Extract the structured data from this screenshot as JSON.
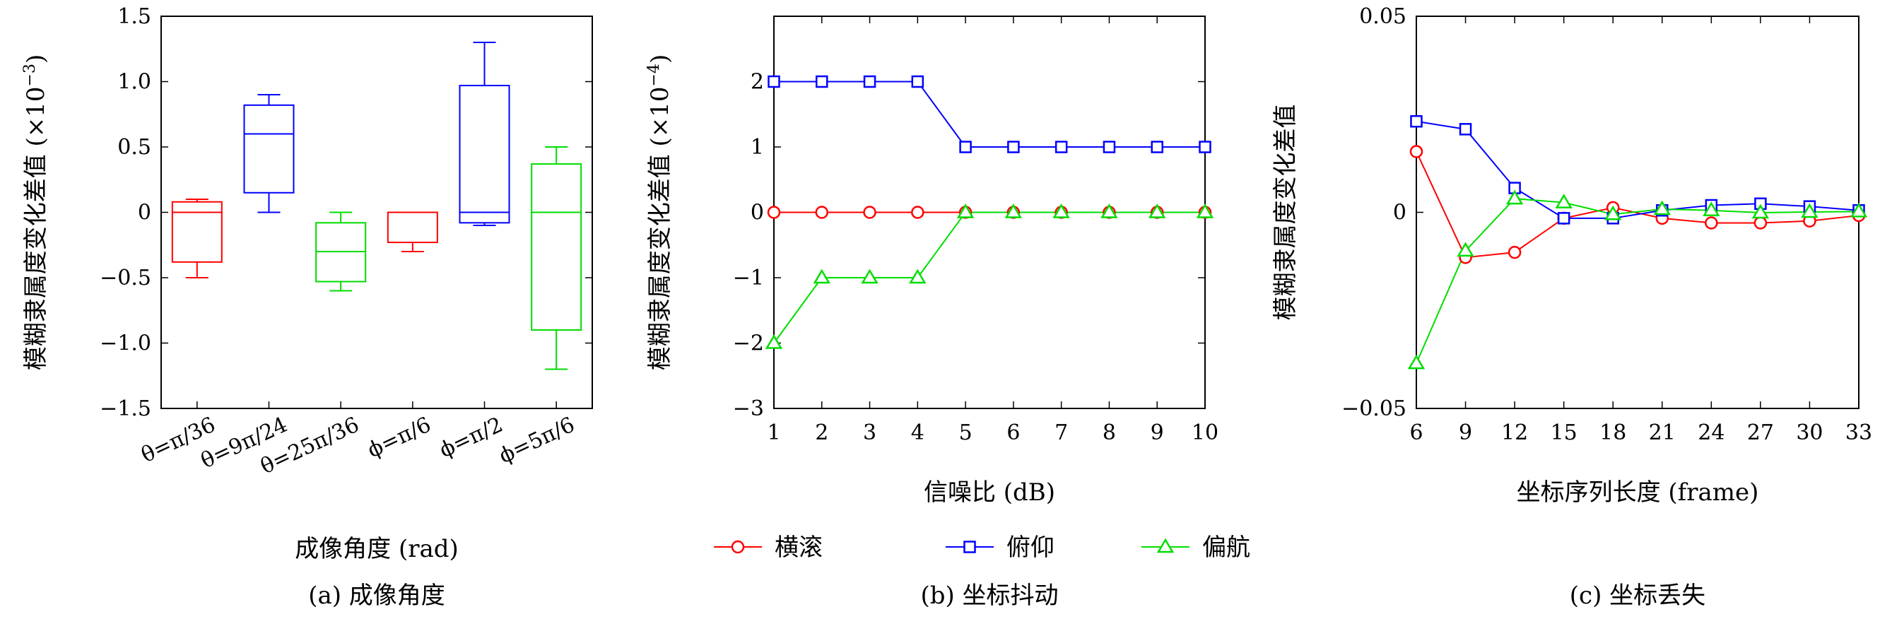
{
  "chart_data": [
    {
      "type": "box",
      "panel_caption": "(a) 成像角度",
      "xlabel": "成像角度 (rad)",
      "ylabel": "模糊隶属度变化差值",
      "ylabel_unit": "(×10",
      "ylabel_exp": "−3",
      "ylabel_close": ")",
      "ylim": [
        -1.5,
        1.5
      ],
      "yticks": [
        -1.5,
        -1.0,
        -0.5,
        0,
        0.5,
        1.0,
        1.5
      ],
      "ytick_labels": [
        "−1.5",
        "−1.0",
        "−0.5",
        "0",
        "0.5",
        "1.0",
        "1.5"
      ],
      "categories": [
        "θ=π/36",
        "θ=9π/24",
        "θ=25π/36",
        "ϕ=π/6",
        "ϕ=π/2",
        "ϕ=5π/6"
      ],
      "boxes": [
        {
          "label": "θ=π/36",
          "color": "#ff0000",
          "min": -0.5,
          "q1": -0.38,
          "median": 0.0,
          "q3": 0.08,
          "max": 0.1
        },
        {
          "label": "θ=9π/24",
          "color": "#0000ff",
          "min": 0.0,
          "q1": 0.15,
          "median": 0.6,
          "q3": 0.82,
          "max": 0.9
        },
        {
          "label": "θ=25π/36",
          "color": "#00dd00",
          "min": -0.6,
          "q1": -0.53,
          "median": -0.3,
          "q3": -0.08,
          "max": 0.0
        },
        {
          "label": "ϕ=π/6",
          "color": "#ff0000",
          "min": -0.3,
          "q1": -0.23,
          "median": 0.0,
          "q3": 0.0,
          "max": 0.0
        },
        {
          "label": "ϕ=π/2",
          "color": "#0000ff",
          "min": -0.1,
          "q1": -0.08,
          "median": 0.0,
          "q3": 0.97,
          "max": 1.3
        },
        {
          "label": "ϕ=5π/6",
          "color": "#00dd00",
          "min": -1.2,
          "q1": -0.9,
          "median": 0.0,
          "q3": 0.37,
          "max": 0.5
        }
      ]
    },
    {
      "type": "line",
      "panel_caption": "(b) 坐标抖动",
      "xlabel": "信噪比 (dB)",
      "ylabel": "模糊隶属度变化差值",
      "ylabel_unit": "(×10",
      "ylabel_exp": "−4",
      "ylabel_close": ")",
      "x": [
        1,
        2,
        3,
        4,
        5,
        6,
        7,
        8,
        9,
        10
      ],
      "xlim": [
        1,
        10
      ],
      "ylim": [
        -3,
        3
      ],
      "yticks": [
        -3,
        -2,
        -1,
        0,
        1,
        2
      ],
      "ytick_labels": [
        "−3",
        "−2",
        "−1",
        "0",
        "1",
        "2"
      ],
      "series": [
        {
          "name": "横滚",
          "color": "#ff0000",
          "marker": "circle",
          "values": [
            0,
            0,
            0,
            0,
            0,
            0,
            0,
            0,
            0,
            0
          ]
        },
        {
          "name": "俯仰",
          "color": "#0000ff",
          "marker": "square",
          "values": [
            2,
            2,
            2,
            2,
            1,
            1,
            1,
            1,
            1,
            1
          ]
        },
        {
          "name": "偏航",
          "color": "#00dd00",
          "marker": "triangle",
          "values": [
            -2,
            -1,
            -1,
            -1,
            0,
            0,
            0,
            0,
            0,
            0
          ]
        }
      ]
    },
    {
      "type": "line",
      "panel_caption": "(c) 坐标丢失",
      "xlabel": "坐标序列长度 (frame)",
      "ylabel": "模糊隶属度变化差值",
      "x": [
        6,
        9,
        12,
        15,
        18,
        21,
        24,
        27,
        30,
        33
      ],
      "xlim": [
        6,
        33
      ],
      "ylim": [
        -0.05,
        0.05
      ],
      "yticks": [
        -0.05,
        0,
        0.05
      ],
      "ytick_labels": [
        "−0.05",
        "0",
        "0.05"
      ],
      "series": [
        {
          "name": "横滚",
          "color": "#ff0000",
          "marker": "circle",
          "values": [
            0.0155,
            -0.0115,
            -0.0102,
            -0.0015,
            0.0012,
            -0.0015,
            -0.0027,
            -0.0027,
            -0.0022,
            -0.0008
          ]
        },
        {
          "name": "俯仰",
          "color": "#0000ff",
          "marker": "square",
          "values": [
            0.0232,
            0.0212,
            0.0062,
            -0.0015,
            -0.0015,
            0.0005,
            0.0018,
            0.0022,
            0.0015,
            0.0005
          ]
        },
        {
          "name": "偏航",
          "color": "#00dd00",
          "marker": "triangle",
          "values": [
            -0.0385,
            -0.0098,
            0.0035,
            0.0025,
            -0.0005,
            0.0008,
            0.0005,
            -0.0001,
            0.0001,
            0.0002
          ]
        }
      ]
    }
  ],
  "legend": {
    "placement": "bottom-center",
    "items": [
      {
        "name": "横滚",
        "color": "#ff0000",
        "marker": "circle"
      },
      {
        "name": "俯仰",
        "color": "#0000ff",
        "marker": "square"
      },
      {
        "name": "偏航",
        "color": "#00dd00",
        "marker": "triangle"
      }
    ]
  }
}
